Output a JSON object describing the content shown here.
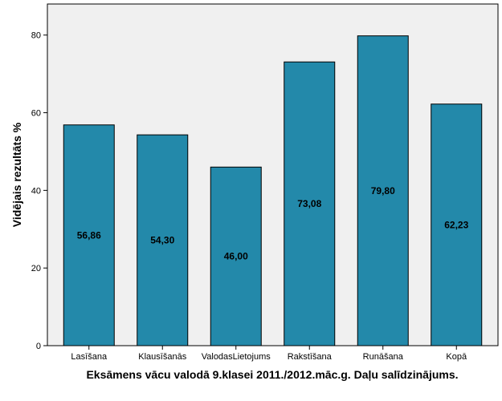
{
  "chart_data": {
    "type": "bar",
    "categories": [
      "Lasīšana",
      "Klausīšanās",
      "ValodasLietojums",
      "Rakstīšana",
      "Runāšana",
      "Kopā"
    ],
    "values": [
      56.86,
      54.3,
      46.0,
      73.08,
      79.8,
      62.23
    ],
    "data_labels": [
      "56,86",
      "54,30",
      "46,00",
      "73,08",
      "79,80",
      "62,23"
    ],
    "y_ticks": [
      0,
      20,
      40,
      60,
      80
    ],
    "ylim": [
      0,
      88
    ],
    "xlabel": "Eksāmens vācu valodā 9.klasei 2011./2012.māc.g. Daļu salīdzinājums.",
    "ylabel": "Vidējais rezultāts %",
    "title": "",
    "grid": false,
    "colors": {
      "bar_fill": "#2389aa",
      "bar_stroke": "#000000",
      "plot_background": "#f0f0f0",
      "axis": "#000000"
    }
  }
}
